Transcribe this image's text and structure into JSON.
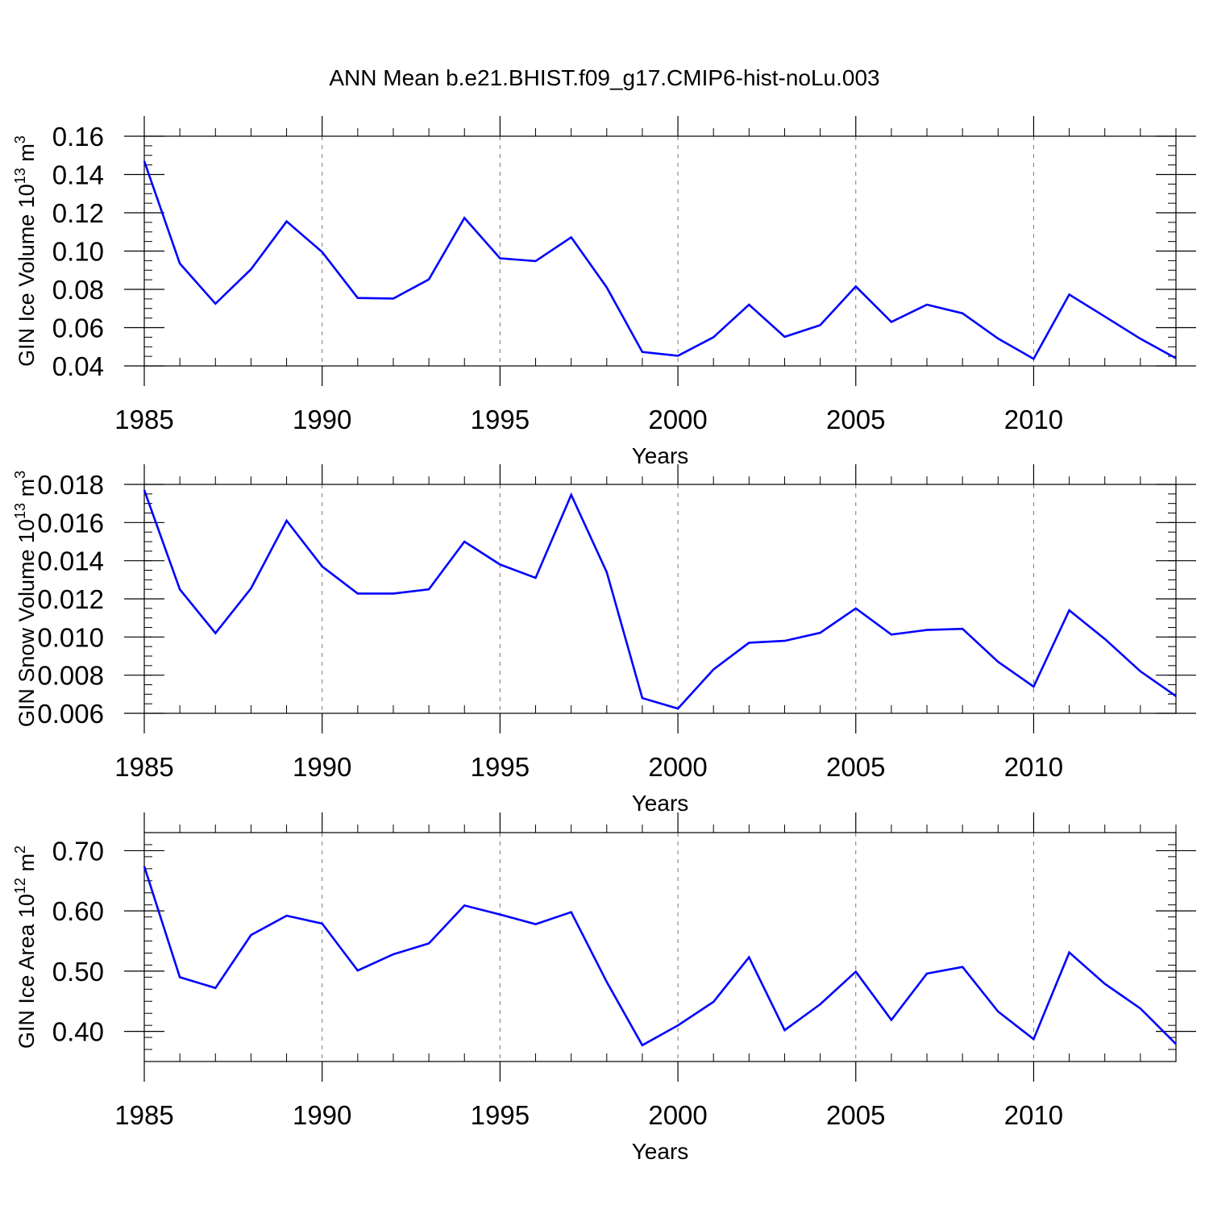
{
  "title": "ANN Mean b.e21.BHIST.f09_g17.CMIP6-hist-noLu.003",
  "line_color": "#0000ff",
  "chart_data": [
    {
      "type": "line",
      "name": "ice-volume",
      "ylabel_main": "GIN Ice Volume 10",
      "ylabel_exp": "13",
      "ylabel_unit": " m",
      "ylabel_unit_exp": "3",
      "xlabel": "Years",
      "xlim": [
        1985,
        2014
      ],
      "ylim": [
        0.04,
        0.16
      ],
      "yticks": [
        0.04,
        0.06,
        0.08,
        0.1,
        0.12,
        0.14,
        0.16
      ],
      "ytick_labels": [
        "0.04",
        "0.06",
        "0.08",
        "0.10",
        "0.12",
        "0.14",
        "0.16"
      ],
      "yminor_step": 0.005,
      "xticks": [
        1985,
        1990,
        1995,
        2000,
        2005,
        2010
      ],
      "xtick_labels": [
        "1985",
        "1990",
        "1995",
        "2000",
        "2005",
        "2010"
      ],
      "x": [
        1985,
        1986,
        1987,
        1988,
        1989,
        1990,
        1991,
        1992,
        1993,
        1994,
        1995,
        1996,
        1997,
        1998,
        1999,
        2000,
        2001,
        2002,
        2003,
        2004,
        2005,
        2006,
        2007,
        2008,
        2009,
        2010,
        2011,
        2012,
        2013,
        2014
      ],
      "values": [
        0.147,
        0.0935,
        0.0725,
        0.0905,
        0.1155,
        0.0995,
        0.0755,
        0.0752,
        0.0852,
        0.1173,
        0.0962,
        0.0948,
        0.1072,
        0.081,
        0.0473,
        0.0453,
        0.055,
        0.072,
        0.0552,
        0.0613,
        0.0815,
        0.063,
        0.072,
        0.0675,
        0.0543,
        0.0437,
        0.0773,
        0.0658,
        0.0542,
        0.044
      ]
    },
    {
      "type": "line",
      "name": "snow-volume",
      "ylabel_main": "GIN Snow Volume 10",
      "ylabel_exp": "13",
      "ylabel_unit": " m",
      "ylabel_unit_exp": "3",
      "xlabel": "Years",
      "xlim": [
        1985,
        2014
      ],
      "ylim": [
        0.006,
        0.018
      ],
      "yticks": [
        0.006,
        0.008,
        0.01,
        0.012,
        0.014,
        0.016,
        0.018
      ],
      "ytick_labels": [
        "0.006",
        "0.008",
        "0.010",
        "0.012",
        "0.014",
        "0.016",
        "0.018"
      ],
      "yminor_step": 0.0005,
      "xticks": [
        1985,
        1990,
        1995,
        2000,
        2005,
        2010
      ],
      "xtick_labels": [
        "1985",
        "1990",
        "1995",
        "2000",
        "2005",
        "2010"
      ],
      "x": [
        1985,
        1986,
        1987,
        1988,
        1989,
        1990,
        1991,
        1992,
        1993,
        1994,
        1995,
        1996,
        1997,
        1998,
        1999,
        2000,
        2001,
        2002,
        2003,
        2004,
        2005,
        2006,
        2007,
        2008,
        2009,
        2010,
        2011,
        2012,
        2013,
        2014
      ],
      "values": [
        0.0177,
        0.0125,
        0.0102,
        0.01255,
        0.0161,
        0.0137,
        0.01228,
        0.01228,
        0.0125,
        0.015,
        0.0138,
        0.0131,
        0.01745,
        0.0134,
        0.0068,
        0.00625,
        0.0083,
        0.0097,
        0.0098,
        0.01022,
        0.0115,
        0.01013,
        0.01037,
        0.01043,
        0.0087,
        0.0074,
        0.0114,
        0.0099,
        0.0082,
        0.0069
      ]
    },
    {
      "type": "line",
      "name": "ice-area",
      "ylabel_main": "GIN Ice Area 10",
      "ylabel_exp": "12",
      "ylabel_unit": " m",
      "ylabel_unit_exp": "2",
      "xlabel": "Years",
      "xlim": [
        1985,
        2014
      ],
      "ylim": [
        0.35,
        0.73
      ],
      "yticks": [
        0.4,
        0.5,
        0.6,
        0.7
      ],
      "ytick_labels": [
        "0.40",
        "0.50",
        "0.60",
        "0.70"
      ],
      "yminor_step": 0.02,
      "xticks": [
        1985,
        1990,
        1995,
        2000,
        2005,
        2010
      ],
      "xtick_labels": [
        "1985",
        "1990",
        "1995",
        "2000",
        "2005",
        "2010"
      ],
      "x": [
        1985,
        1986,
        1987,
        1988,
        1989,
        1990,
        1991,
        1992,
        1993,
        1994,
        1995,
        1996,
        1997,
        1998,
        1999,
        2000,
        2001,
        2002,
        2003,
        2004,
        2005,
        2006,
        2007,
        2008,
        2009,
        2010,
        2011,
        2012,
        2013,
        2014
      ],
      "values": [
        0.674,
        0.49,
        0.472,
        0.56,
        0.592,
        0.579,
        0.501,
        0.528,
        0.546,
        0.609,
        0.594,
        0.578,
        0.598,
        0.482,
        0.377,
        0.41,
        0.449,
        0.523,
        0.402,
        0.445,
        0.499,
        0.419,
        0.496,
        0.507,
        0.433,
        0.387,
        0.531,
        0.479,
        0.438,
        0.379
      ]
    }
  ]
}
